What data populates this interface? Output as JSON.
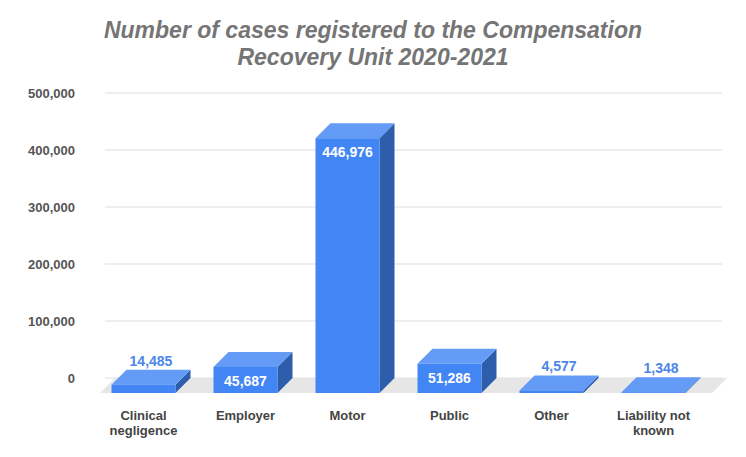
{
  "chart_data": {
    "type": "bar",
    "title": "Number of cases registered to the Compensation Recovery Unit 2020-2021",
    "categories": [
      "Clinical negligence",
      "Employer",
      "Motor",
      "Public",
      "Other",
      "Liability not known"
    ],
    "values": [
      14485,
      45687,
      446976,
      51286,
      4577,
      1348
    ],
    "value_labels": [
      "14,485",
      "45,687",
      "446,976",
      "51,286",
      "4,577",
      "1,348"
    ],
    "color": "#4285f4",
    "ylim": [
      0,
      500000
    ],
    "yticks": [
      0,
      {
        "value": 100000,
        "label": "100,000"
      },
      {
        "value": 200000,
        "label": "200,000"
      },
      {
        "value": 300000,
        "label": "300,000"
      },
      {
        "value": 400000,
        "label": "400,000"
      },
      {
        "value": 500000,
        "label": "500,000"
      }
    ],
    "grid": true,
    "data_labels": true
  }
}
